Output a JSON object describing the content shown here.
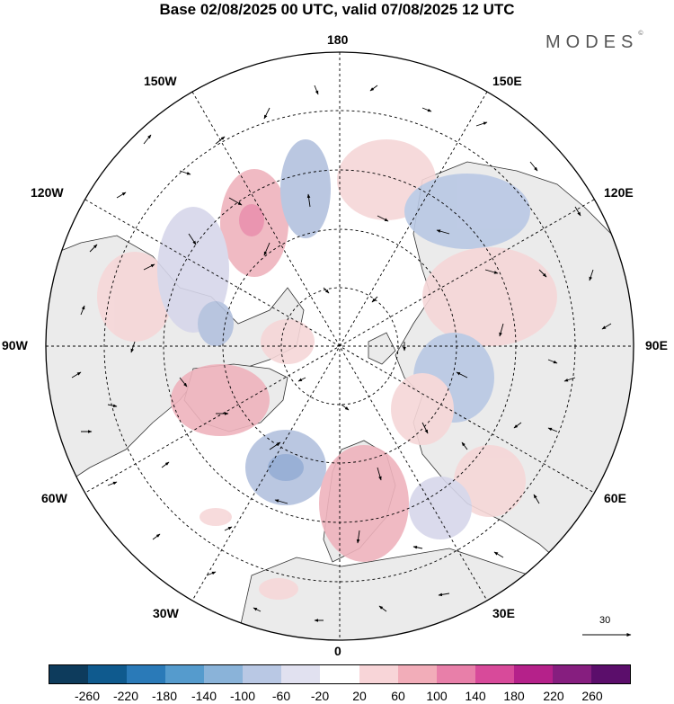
{
  "title": "Base 02/08/2025 00 UTC, valid 07/08/2025 12 UTC",
  "brand": {
    "text": "MODES",
    "mark": "©"
  },
  "longitude_labels": {
    "lon_180": "180",
    "lon_150e": "150E",
    "lon_120e": "120E",
    "lon_90e": "90E",
    "lon_60e": "60E",
    "lon_30e": "30E",
    "lon_0": "0",
    "lon_30w": "30W",
    "lon_60w": "60W",
    "lon_90w": "90W",
    "lon_120w": "120W",
    "lon_150w": "150W"
  },
  "reference_vector": {
    "label": "30"
  },
  "colorbar": {
    "colors": [
      "#0d3b5c",
      "#0f5a8e",
      "#2a7ab8",
      "#559bcd",
      "#8ab3d9",
      "#b9c8e4",
      "#e1e1f0",
      "#ffffff",
      "#f8d5d8",
      "#f2adb9",
      "#e87fa9",
      "#d84a9a",
      "#b5218a",
      "#861e7f",
      "#5b0e6b"
    ],
    "labels": {
      "m260": "-260",
      "m220": "-220",
      "m180": "-180",
      "m140": "-140",
      "m100": "-100",
      "m60": "-60",
      "m20": "-20",
      "p20": "20",
      "p60": "60",
      "p100": "100",
      "p140": "140",
      "p180": "180",
      "p220": "220",
      "p260": "260"
    }
  },
  "anomaly_palette": {
    "neg_light": "#d6d6ea",
    "neg_mid": "#b3c1de",
    "neg_strong": "#8ea8d2",
    "pos_light": "#f6d7d8",
    "pos_mid": "#efb3bd",
    "pos_strong": "#e88aa8",
    "land": "#ebebeb",
    "ocean": "#ffffff"
  }
}
